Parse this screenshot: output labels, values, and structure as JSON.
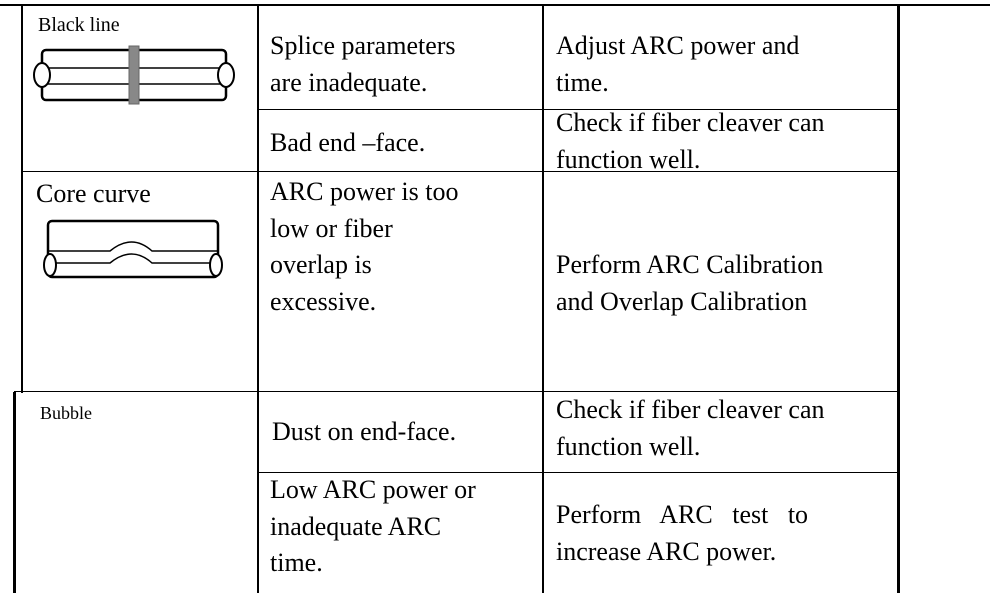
{
  "table": {
    "rows": [
      {
        "defect": "Black line",
        "causes": [
          {
            "cause": "Splice parameters\nare inadequate.",
            "solution": "Adjust ARC power and\ntime."
          },
          {
            "cause": "Bad end –face.",
            "solution": "Check if fiber cleaver can\nfunction well."
          }
        ]
      },
      {
        "defect": "Core curve",
        "causes": [
          {
            "cause": "ARC power is too\nlow or fiber\noverlap is\nexcessive.",
            "solution": "Perform ARC Calibration\nand Overlap Calibration"
          }
        ]
      },
      {
        "defect": "Bubble",
        "causes": [
          {
            "cause": "Dust on end-face.",
            "solution": "Check if fiber cleaver can\nfunction well."
          },
          {
            "cause": "Low ARC power or\ninadequate ARC\ntime.",
            "solution": "Perform   ARC   test   to\nincrease ARC power."
          }
        ]
      }
    ]
  }
}
